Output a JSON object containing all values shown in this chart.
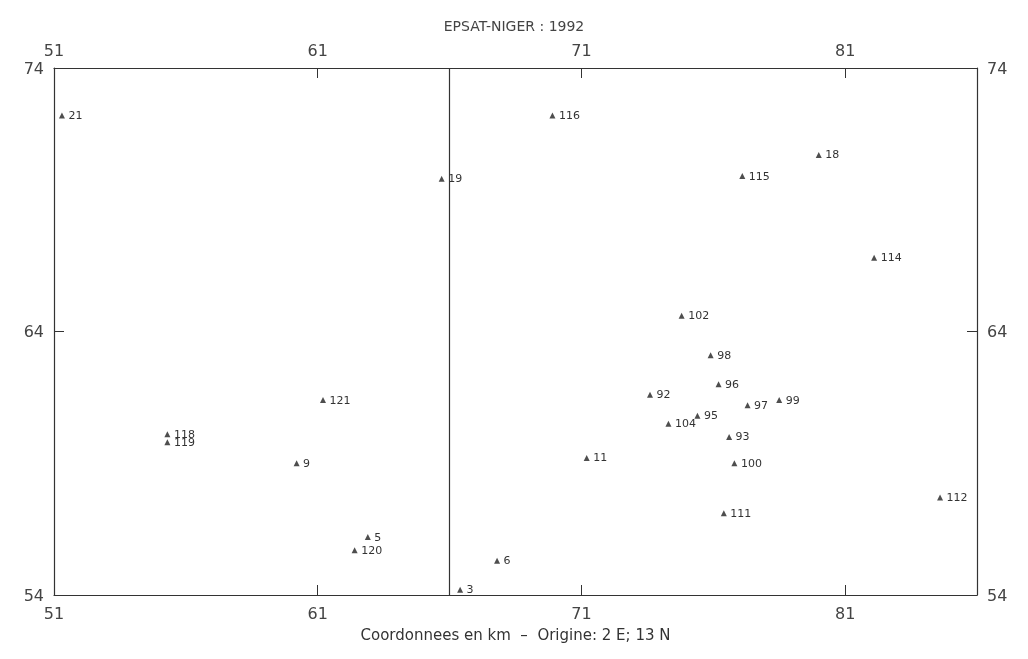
{
  "chart_data": {
    "type": "scatter",
    "title": "EPSAT-NIGER : 1992",
    "xlabel": "Coordonnees en km  –  Origine: 2 E; 13 N",
    "x": [
      51.3,
      65.7,
      69.9,
      80.0,
      77.1,
      82.1,
      74.8,
      75.9,
      76.2,
      73.6,
      77.3,
      78.5,
      74.3,
      75.4,
      76.6,
      76.8,
      71.2,
      84.6,
      76.4,
      67.8,
      66.4,
      61.2,
      55.3,
      55.3,
      60.2,
      62.4,
      62.9
    ],
    "values": [
      72.2,
      69.8,
      72.2,
      70.7,
      69.9,
      66.8,
      64.6,
      63.1,
      62.0,
      61.6,
      61.2,
      61.4,
      60.5,
      60.8,
      60.0,
      59.0,
      59.2,
      57.7,
      57.1,
      55.3,
      54.2,
      61.4,
      60.1,
      59.8,
      59.0,
      55.7,
      56.2
    ],
    "annotations": [
      {
        "text": "21",
        "x": 51.3,
        "y": 72.2
      },
      {
        "text": "19",
        "x": 65.7,
        "y": 69.8
      },
      {
        "text": "116",
        "x": 69.9,
        "y": 72.2
      },
      {
        "text": "18",
        "x": 80.0,
        "y": 70.7
      },
      {
        "text": "115",
        "x": 77.1,
        "y": 69.9
      },
      {
        "text": "114",
        "x": 82.1,
        "y": 66.8
      },
      {
        "text": "102",
        "x": 74.8,
        "y": 64.6
      },
      {
        "text": "98",
        "x": 75.9,
        "y": 63.1
      },
      {
        "text": "96",
        "x": 76.2,
        "y": 62.0
      },
      {
        "text": "92",
        "x": 73.6,
        "y": 61.6
      },
      {
        "text": "97",
        "x": 77.3,
        "y": 61.2
      },
      {
        "text": "99",
        "x": 78.5,
        "y": 61.4
      },
      {
        "text": "104",
        "x": 74.3,
        "y": 60.5
      },
      {
        "text": "95",
        "x": 75.4,
        "y": 60.8
      },
      {
        "text": "93",
        "x": 76.6,
        "y": 60.0
      },
      {
        "text": "100",
        "x": 76.8,
        "y": 59.0
      },
      {
        "text": "11",
        "x": 71.2,
        "y": 59.2
      },
      {
        "text": "112",
        "x": 84.6,
        "y": 57.7
      },
      {
        "text": "111",
        "x": 76.4,
        "y": 57.1
      },
      {
        "text": "6",
        "x": 67.8,
        "y": 55.3
      },
      {
        "text": "3",
        "x": 66.4,
        "y": 54.2
      },
      {
        "text": "121",
        "x": 61.2,
        "y": 61.4
      },
      {
        "text": "118",
        "x": 55.3,
        "y": 60.1
      },
      {
        "text": "119",
        "x": 55.3,
        "y": 59.8
      },
      {
        "text": "9",
        "x": 60.2,
        "y": 59.0
      },
      {
        "text": "120",
        "x": 62.4,
        "y": 55.7
      },
      {
        "text": "5",
        "x": 62.9,
        "y": 56.2
      }
    ],
    "color": "#222222",
    "marker": "triangle",
    "grid": false,
    "xlim": [
      51,
      86
    ],
    "xticks": [
      51,
      61,
      71,
      81
    ],
    "x2lim": [
      51,
      86
    ],
    "x2ticks": [
      51,
      61,
      71,
      81
    ],
    "ylim": [
      54,
      74
    ],
    "yticks": [
      54,
      64,
      74
    ],
    "y2lim": [
      54,
      74
    ],
    "y2ticks": [
      54,
      64,
      74
    ],
    "ref_lines": [
      {
        "axis": "x",
        "value": 66,
        "label": null,
        "color": "#333333",
        "line_style": "solid"
      }
    ]
  }
}
